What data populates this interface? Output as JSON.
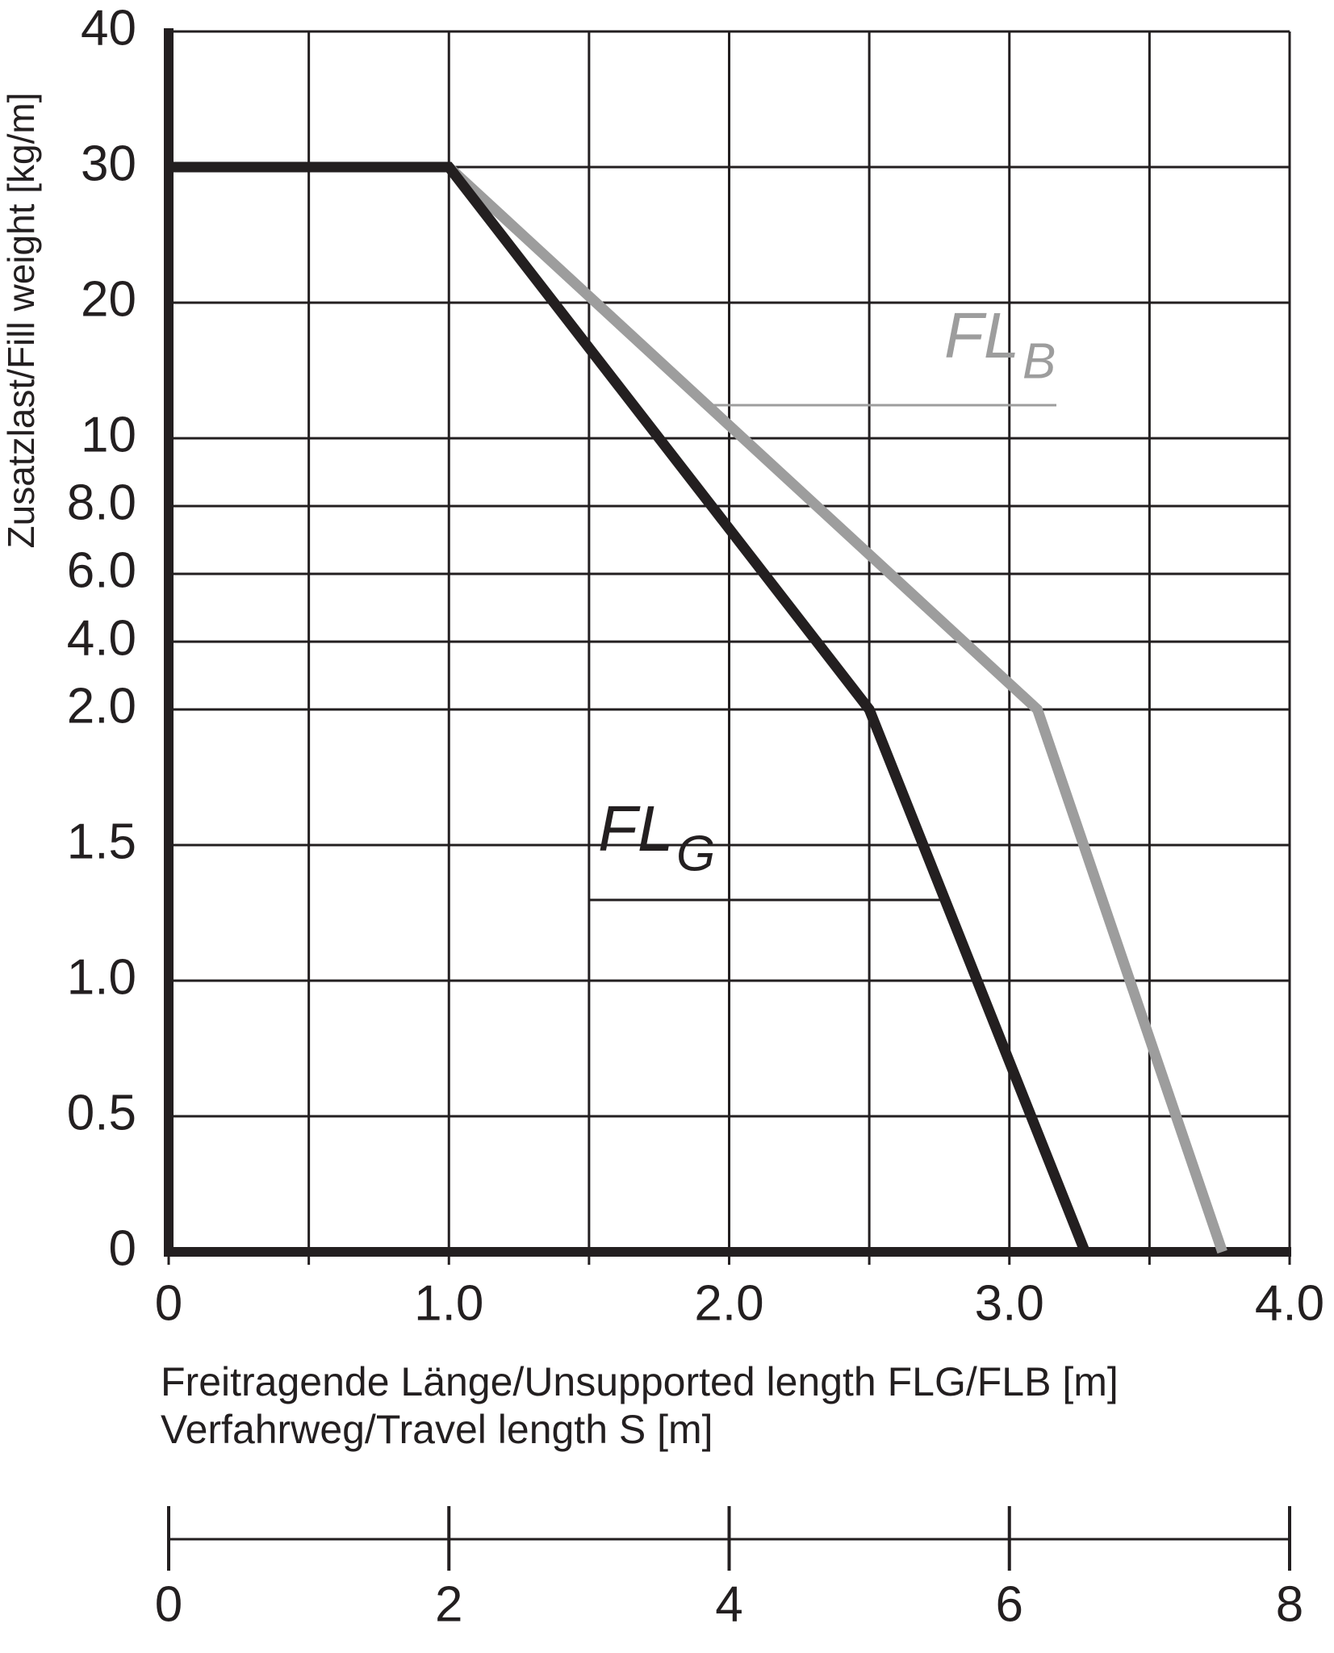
{
  "chart_data": {
    "type": "line",
    "ylabel": "Zusatzlast/Fill weight [kg/m]",
    "xlabel": "Freitragende Länge/Unsupported length FLG/FLB [m]",
    "x2label": "Verfahrweg/Travel length S [m]",
    "xlim": [
      0,
      4
    ],
    "xticks": [
      0,
      {
        "value": 1,
        "label": "1.0"
      },
      {
        "value": 2,
        "label": "2.0"
      },
      {
        "value": 3,
        "label": "3.0"
      },
      {
        "value": 4,
        "label": "4.0"
      }
    ],
    "xminor": [
      0.5,
      1.5,
      2.5,
      3.5
    ],
    "x2lim": [
      0,
      8
    ],
    "x2ticks": [
      0,
      2,
      4,
      6,
      8
    ],
    "ylim": [
      0,
      40
    ],
    "yticks": [
      0,
      0.5,
      {
        "value": 1,
        "label": "1.0"
      },
      1.5,
      {
        "value": 2,
        "label": "2.0"
      },
      {
        "value": 4,
        "label": "4.0"
      },
      {
        "value": 6,
        "label": "6.0"
      },
      {
        "value": 8,
        "label": "8.0"
      },
      10,
      20,
      30,
      40
    ],
    "grid": true,
    "series": [
      {
        "color": "#9d9d9d",
        "x": [
          1.0,
          3.1,
          3.76
        ],
        "values": [
          30,
          2.0,
          0
        ]
      },
      {
        "color": "#231f20",
        "x": [
          0,
          1.0,
          2.5,
          3.27
        ],
        "values": [
          30,
          30,
          2.0,
          0
        ]
      }
    ],
    "annotations": [
      {
        "text": "FL",
        "sub": "B",
        "color": "#9d9d9d"
      },
      {
        "text": "FL",
        "sub": "G",
        "color": "#231f20"
      }
    ]
  }
}
